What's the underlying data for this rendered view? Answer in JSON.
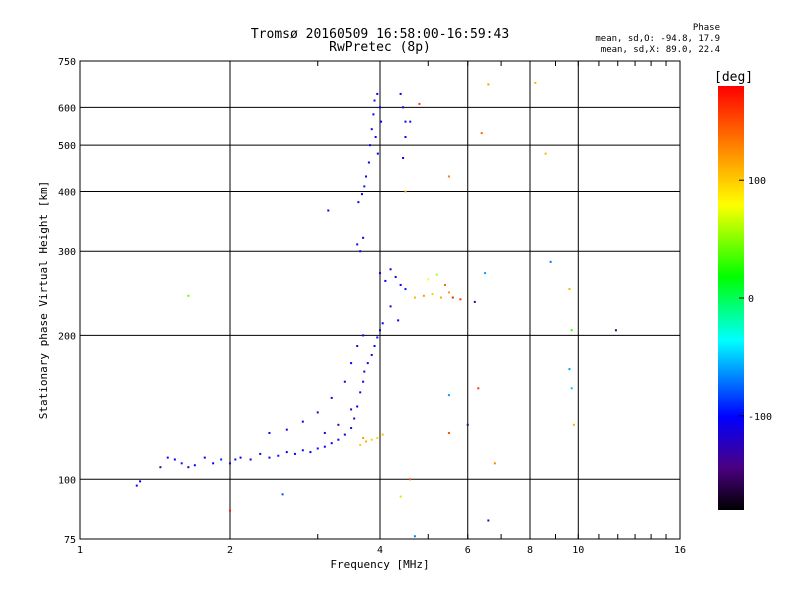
{
  "header": {
    "title_line1": "Tromsø 20160509 16:58:00-16:59:43",
    "title_line2": "RwPretec (8p)"
  },
  "phase_box": {
    "label": "Phase",
    "line_o": "mean, sd,O: -94.8, 17.9",
    "line_x": "mean, sd,X:  89.0, 22.4"
  },
  "colorbar": {
    "unit": "[deg]",
    "ticks": [
      {
        "value": 100,
        "label": "100"
      },
      {
        "value": 0,
        "label": "0"
      },
      {
        "value": -100,
        "label": "-100"
      }
    ],
    "range": [
      -180,
      180
    ]
  },
  "chart_data": {
    "type": "scatter",
    "title": "Tromsø 20160509 16:58:00-16:59:43",
    "subtitle": "RwPretec (8p)",
    "xlabel": "Frequency [MHz]",
    "ylabel": "Stationary phase Virtual Height [km]",
    "xscale": "log",
    "yscale": "log",
    "xlim": [
      1,
      16
    ],
    "ylim": [
      75,
      750
    ],
    "x_ticks": [
      {
        "value": 1,
        "label": "1"
      },
      {
        "value": 2,
        "label": "2"
      },
      {
        "value": 4,
        "label": "4"
      },
      {
        "value": 6,
        "label": "6"
      },
      {
        "value": 8,
        "label": "8"
      },
      {
        "value": 10,
        "label": "10"
      },
      {
        "value": 16,
        "label": "16"
      }
    ],
    "y_ticks": [
      {
        "value": 75,
        "label": "75"
      },
      {
        "value": 100,
        "label": "100"
      },
      {
        "value": 200,
        "label": "200"
      },
      {
        "value": 300,
        "label": "300"
      },
      {
        "value": 400,
        "label": "400"
      },
      {
        "value": 500,
        "label": "500"
      },
      {
        "value": 600,
        "label": "600"
      },
      {
        "value": 750,
        "label": "750"
      }
    ],
    "grid": true,
    "color_dimension": "phase [deg]",
    "points": [
      {
        "x": 1.3,
        "y": 97,
        "p": -110
      },
      {
        "x": 1.32,
        "y": 99,
        "p": -105
      },
      {
        "x": 1.45,
        "y": 106,
        "p": -150
      },
      {
        "x": 1.5,
        "y": 111,
        "p": -120
      },
      {
        "x": 1.55,
        "y": 110,
        "p": -100
      },
      {
        "x": 1.6,
        "y": 108,
        "p": -95
      },
      {
        "x": 1.65,
        "y": 106,
        "p": -110
      },
      {
        "x": 1.7,
        "y": 107,
        "p": -100
      },
      {
        "x": 1.78,
        "y": 111,
        "p": -100
      },
      {
        "x": 1.85,
        "y": 108,
        "p": -110
      },
      {
        "x": 1.92,
        "y": 110,
        "p": -90
      },
      {
        "x": 2.0,
        "y": 108,
        "p": -120
      },
      {
        "x": 2.05,
        "y": 110,
        "p": -95
      },
      {
        "x": 2.1,
        "y": 111,
        "p": -100
      },
      {
        "x": 2.2,
        "y": 110,
        "p": -110
      },
      {
        "x": 2.3,
        "y": 113,
        "p": -105
      },
      {
        "x": 2.4,
        "y": 111,
        "p": -100
      },
      {
        "x": 2.5,
        "y": 112,
        "p": -95
      },
      {
        "x": 2.6,
        "y": 114,
        "p": -110
      },
      {
        "x": 2.7,
        "y": 113,
        "p": -100
      },
      {
        "x": 2.8,
        "y": 115,
        "p": -105
      },
      {
        "x": 2.9,
        "y": 114,
        "p": -100
      },
      {
        "x": 3.0,
        "y": 116,
        "p": -95
      },
      {
        "x": 3.1,
        "y": 117,
        "p": -110
      },
      {
        "x": 3.2,
        "y": 119,
        "p": -100
      },
      {
        "x": 3.3,
        "y": 121,
        "p": -105
      },
      {
        "x": 3.4,
        "y": 124,
        "p": -100
      },
      {
        "x": 3.5,
        "y": 128,
        "p": -95
      },
      {
        "x": 3.55,
        "y": 134,
        "p": -110
      },
      {
        "x": 3.6,
        "y": 142,
        "p": -100
      },
      {
        "x": 3.65,
        "y": 152,
        "p": -120
      },
      {
        "x": 3.7,
        "y": 160,
        "p": -105
      },
      {
        "x": 3.72,
        "y": 168,
        "p": -110
      },
      {
        "x": 3.78,
        "y": 175,
        "p": -100
      },
      {
        "x": 3.85,
        "y": 182,
        "p": -115
      },
      {
        "x": 3.9,
        "y": 190,
        "p": -100
      },
      {
        "x": 3.95,
        "y": 198,
        "p": -95
      },
      {
        "x": 4.0,
        "y": 205,
        "p": -110
      },
      {
        "x": 4.05,
        "y": 212,
        "p": -100
      },
      {
        "x": 2.4,
        "y": 125,
        "p": -100
      },
      {
        "x": 2.6,
        "y": 127,
        "p": -110
      },
      {
        "x": 2.8,
        "y": 132,
        "p": -100
      },
      {
        "x": 3.0,
        "y": 138,
        "p": -110
      },
      {
        "x": 3.2,
        "y": 148,
        "p": -105
      },
      {
        "x": 3.4,
        "y": 160,
        "p": -110
      },
      {
        "x": 3.5,
        "y": 175,
        "p": -100
      },
      {
        "x": 3.6,
        "y": 190,
        "p": -120
      },
      {
        "x": 3.7,
        "y": 200,
        "p": -110
      },
      {
        "x": 3.1,
        "y": 125,
        "p": -130
      },
      {
        "x": 3.3,
        "y": 130,
        "p": -140
      },
      {
        "x": 3.5,
        "y": 140,
        "p": -120
      },
      {
        "x": 3.65,
        "y": 118,
        "p": 100
      },
      {
        "x": 3.75,
        "y": 120,
        "p": 110
      },
      {
        "x": 3.85,
        "y": 121,
        "p": 100
      },
      {
        "x": 3.95,
        "y": 122,
        "p": 95
      },
      {
        "x": 4.05,
        "y": 124,
        "p": 105
      },
      {
        "x": 3.7,
        "y": 122,
        "p": 120
      },
      {
        "x": 3.6,
        "y": 310,
        "p": -110
      },
      {
        "x": 3.65,
        "y": 300,
        "p": -100
      },
      {
        "x": 3.7,
        "y": 320,
        "p": -105
      },
      {
        "x": 3.62,
        "y": 380,
        "p": -110
      },
      {
        "x": 3.68,
        "y": 395,
        "p": -100
      },
      {
        "x": 3.72,
        "y": 410,
        "p": -95
      },
      {
        "x": 3.75,
        "y": 430,
        "p": -110
      },
      {
        "x": 3.8,
        "y": 460,
        "p": -100
      },
      {
        "x": 3.82,
        "y": 500,
        "p": -105
      },
      {
        "x": 3.85,
        "y": 540,
        "p": -110
      },
      {
        "x": 3.88,
        "y": 580,
        "p": -100
      },
      {
        "x": 3.9,
        "y": 620,
        "p": -95
      },
      {
        "x": 3.95,
        "y": 640,
        "p": -110
      },
      {
        "x": 4.0,
        "y": 600,
        "p": -100
      },
      {
        "x": 4.02,
        "y": 560,
        "p": -105
      },
      {
        "x": 3.92,
        "y": 520,
        "p": -110
      },
      {
        "x": 3.96,
        "y": 480,
        "p": -100
      },
      {
        "x": 4.4,
        "y": 640,
        "p": -110
      },
      {
        "x": 4.45,
        "y": 600,
        "p": -100
      },
      {
        "x": 4.5,
        "y": 560,
        "p": -105
      },
      {
        "x": 4.5,
        "y": 520,
        "p": -110
      },
      {
        "x": 4.45,
        "y": 470,
        "p": -100
      },
      {
        "x": 4.6,
        "y": 560,
        "p": -95
      },
      {
        "x": 4.0,
        "y": 270,
        "p": -110
      },
      {
        "x": 4.1,
        "y": 260,
        "p": -100
      },
      {
        "x": 4.2,
        "y": 275,
        "p": -105
      },
      {
        "x": 4.3,
        "y": 265,
        "p": -110
      },
      {
        "x": 4.4,
        "y": 255,
        "p": -100
      },
      {
        "x": 4.5,
        "y": 250,
        "p": -95
      },
      {
        "x": 4.2,
        "y": 230,
        "p": -110
      },
      {
        "x": 4.35,
        "y": 215,
        "p": -100
      },
      {
        "x": 4.7,
        "y": 240,
        "p": 110
      },
      {
        "x": 4.9,
        "y": 242,
        "p": 120
      },
      {
        "x": 5.1,
        "y": 244,
        "p": 100
      },
      {
        "x": 5.3,
        "y": 240,
        "p": 115
      },
      {
        "x": 5.5,
        "y": 246,
        "p": 120
      },
      {
        "x": 5.0,
        "y": 262,
        "p": 80
      },
      {
        "x": 5.2,
        "y": 268,
        "p": 60
      },
      {
        "x": 5.4,
        "y": 255,
        "p": 140
      },
      {
        "x": 5.6,
        "y": 240,
        "p": 170
      },
      {
        "x": 5.8,
        "y": 238,
        "p": 160
      },
      {
        "x": 6.2,
        "y": 235,
        "p": -140
      },
      {
        "x": 6.5,
        "y": 270,
        "p": -60
      },
      {
        "x": 4.5,
        "y": 400,
        "p": 110
      },
      {
        "x": 5.5,
        "y": 430,
        "p": 130
      },
      {
        "x": 6.4,
        "y": 530,
        "p": 140
      },
      {
        "x": 6.6,
        "y": 670,
        "p": 120
      },
      {
        "x": 8.2,
        "y": 675,
        "p": 110
      },
      {
        "x": 8.6,
        "y": 480,
        "p": 110
      },
      {
        "x": 4.8,
        "y": 610,
        "p": 160
      },
      {
        "x": 1.65,
        "y": 242,
        "p": 40
      },
      {
        "x": 3.15,
        "y": 365,
        "p": -120
      },
      {
        "x": 9.6,
        "y": 250,
        "p": 110
      },
      {
        "x": 9.7,
        "y": 205,
        "p": 30
      },
      {
        "x": 9.6,
        "y": 170,
        "p": -60
      },
      {
        "x": 9.7,
        "y": 155,
        "p": -50
      },
      {
        "x": 9.8,
        "y": 130,
        "p": 110
      },
      {
        "x": 11.9,
        "y": 205,
        "p": -150
      },
      {
        "x": 5.5,
        "y": 150,
        "p": -60
      },
      {
        "x": 6.0,
        "y": 130,
        "p": -150
      },
      {
        "x": 5.5,
        "y": 125,
        "p": 150
      },
      {
        "x": 6.3,
        "y": 155,
        "p": 160
      },
      {
        "x": 6.8,
        "y": 108,
        "p": 130
      },
      {
        "x": 6.6,
        "y": 82,
        "p": -140
      },
      {
        "x": 4.6,
        "y": 100,
        "p": 150
      },
      {
        "x": 4.4,
        "y": 92,
        "p": 60
      },
      {
        "x": 4.7,
        "y": 76,
        "p": -70
      },
      {
        "x": 2.55,
        "y": 93,
        "p": -80
      },
      {
        "x": 2.0,
        "y": 86,
        "p": 170
      },
      {
        "x": 8.8,
        "y": 285,
        "p": -70
      }
    ]
  }
}
